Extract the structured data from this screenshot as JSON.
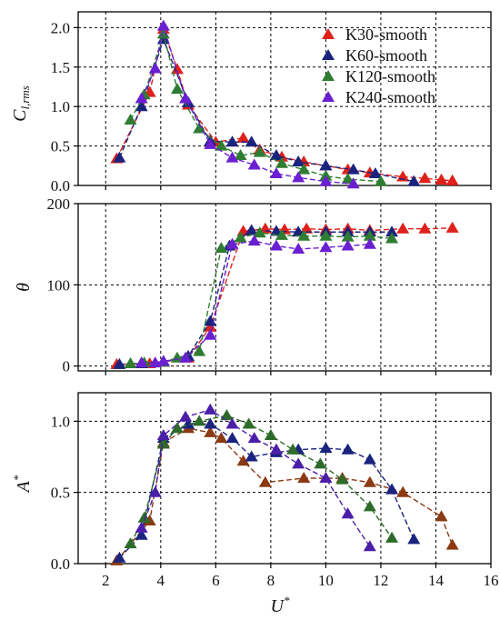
{
  "chart_data": [
    {
      "type": "line",
      "ylabel": "C_l,rms",
      "ylabel_main": "C",
      "ylabel_sub": "l,rms",
      "xlim": [
        1,
        16
      ],
      "ylim": [
        0,
        2.2
      ],
      "xticks": [
        2,
        4,
        6,
        8,
        10,
        12,
        14,
        16
      ],
      "yticks": [
        0.0,
        0.5,
        1.0,
        1.5,
        2.0
      ],
      "ytick_labels": [
        "0.0",
        "0.5",
        "1.0",
        "1.5",
        "2.0"
      ],
      "grid": true,
      "legend_position": "top-right",
      "series": [
        {
          "name": "K30-smooth",
          "color": "#e0201b",
          "x": [
            2.4,
            3.6,
            4.1,
            4.6,
            5.0,
            6.0,
            7.0,
            7.6,
            8.4,
            9.2,
            10.0,
            10.8,
            11.6,
            12.8,
            13.6,
            14.2,
            14.6
          ],
          "y": [
            0.34,
            1.18,
            1.98,
            1.47,
            1.02,
            0.55,
            0.6,
            0.45,
            0.36,
            0.3,
            0.25,
            0.2,
            0.16,
            0.11,
            0.09,
            0.07,
            0.06
          ]
        },
        {
          "name": "K60-smooth",
          "color": "#1a237e",
          "x": [
            2.5,
            3.3,
            4.1,
            5.0,
            5.8,
            6.6,
            7.3,
            8.2,
            9.0,
            10.0,
            11.0,
            11.8,
            13.2
          ],
          "y": [
            0.35,
            1.0,
            1.85,
            1.05,
            0.56,
            0.55,
            0.55,
            0.38,
            0.3,
            0.25,
            0.2,
            0.15,
            0.05
          ]
        },
        {
          "name": "K120-smooth",
          "color": "#2e7d32",
          "x": [
            2.9,
            3.4,
            4.1,
            4.6,
            5.4,
            6.2,
            6.9,
            7.6,
            8.4,
            9.2,
            10.0,
            10.8,
            12.0
          ],
          "y": [
            0.83,
            1.15,
            1.92,
            1.22,
            0.72,
            0.5,
            0.38,
            0.42,
            0.28,
            0.2,
            0.12,
            0.08,
            0.05
          ]
        },
        {
          "name": "K240-smooth",
          "color": "#6a1fd1",
          "x": [
            3.3,
            3.8,
            4.1,
            4.9,
            5.8,
            6.6,
            7.4,
            8.2,
            9.0,
            10.0,
            11.0
          ],
          "y": [
            1.1,
            1.48,
            2.02,
            1.1,
            0.52,
            0.35,
            0.26,
            0.15,
            0.1,
            0.05,
            0.02
          ]
        }
      ]
    },
    {
      "type": "line",
      "ylabel": "θ",
      "xlim": [
        1,
        16
      ],
      "ylim": [
        -6,
        200
      ],
      "xticks": [
        2,
        4,
        6,
        8,
        10,
        12,
        14,
        16
      ],
      "yticks": [
        0,
        100,
        200
      ],
      "ytick_labels": [
        "0",
        "100",
        "200"
      ],
      "grid": true,
      "series": [
        {
          "name": "K30-smooth",
          "color": "#e0201b",
          "x": [
            2.4,
            3.6,
            4.1,
            5.0,
            5.8,
            7.0,
            7.8,
            8.5,
            9.3,
            10.0,
            10.8,
            11.6,
            12.8,
            13.6,
            14.6
          ],
          "y": [
            2,
            3,
            5,
            10,
            48,
            166,
            169,
            168,
            169,
            168,
            169,
            167,
            169,
            169,
            170
          ]
        },
        {
          "name": "K60-smooth",
          "color": "#1a237e",
          "x": [
            2.5,
            3.3,
            4.1,
            5.0,
            5.8,
            6.5,
            7.3,
            8.2,
            9.0,
            10.0,
            10.8,
            11.6,
            12.4
          ],
          "y": [
            2,
            3,
            5,
            12,
            55,
            148,
            167,
            166,
            165,
            165,
            165,
            165,
            165
          ]
        },
        {
          "name": "K120-smooth",
          "color": "#2e7d32",
          "x": [
            2.9,
            3.4,
            4.1,
            4.6,
            5.4,
            6.2,
            6.9,
            7.6,
            8.4,
            9.2,
            10.0,
            10.8,
            11.6,
            12.4
          ],
          "y": [
            3,
            4,
            5,
            10,
            18,
            145,
            158,
            164,
            161,
            160,
            160,
            159,
            160,
            157
          ]
        },
        {
          "name": "K240-smooth",
          "color": "#6a1fd1",
          "x": [
            3.3,
            3.8,
            4.1,
            4.9,
            5.8,
            6.6,
            7.4,
            8.2,
            9.0,
            10.0,
            10.8,
            11.6
          ],
          "y": [
            4,
            4,
            6,
            10,
            38,
            150,
            154,
            148,
            144,
            146,
            148,
            150
          ]
        }
      ]
    },
    {
      "type": "line",
      "ylabel": "A*",
      "ylabel_main": "A",
      "ylabel_sup": "*",
      "xlabel": "U*",
      "xlabel_main": "U",
      "xlabel_sup": "*",
      "xlim": [
        1,
        16
      ],
      "ylim": [
        0,
        1.2
      ],
      "xticks": [
        2,
        4,
        6,
        8,
        10,
        12,
        14,
        16
      ],
      "xtick_labels": [
        "2",
        "4",
        "6",
        "8",
        "10",
        "12",
        "14",
        "16"
      ],
      "yticks": [
        0.0,
        0.5,
        1.0
      ],
      "ytick_labels": [
        "0.0",
        "0.5",
        "1.0"
      ],
      "grid": true,
      "series": [
        {
          "name": "K30-smooth",
          "color": "#8b3a13",
          "x": [
            2.4,
            3.6,
            4.1,
            5.0,
            5.8,
            6.2,
            7.0,
            7.8,
            9.2,
            10.0,
            10.6,
            11.6,
            12.8,
            14.2,
            14.6
          ],
          "y": [
            0.02,
            0.3,
            0.85,
            0.95,
            0.92,
            0.88,
            0.72,
            0.57,
            0.6,
            0.6,
            0.6,
            0.57,
            0.5,
            0.33,
            0.13
          ]
        },
        {
          "name": "K60-smooth",
          "color": "#1a237e",
          "x": [
            2.5,
            3.3,
            4.1,
            5.0,
            5.8,
            6.6,
            7.3,
            8.2,
            9.0,
            10.0,
            10.8,
            11.6,
            12.4,
            13.2
          ],
          "y": [
            0.04,
            0.2,
            0.88,
            0.98,
            0.98,
            0.88,
            0.75,
            0.78,
            0.8,
            0.81,
            0.8,
            0.73,
            0.52,
            0.17
          ]
        },
        {
          "name": "K120-smooth",
          "color": "#2e6b2a",
          "x": [
            2.9,
            3.4,
            4.1,
            4.6,
            5.4,
            6.4,
            7.2,
            8.0,
            8.8,
            9.8,
            10.6,
            11.6,
            12.4
          ],
          "y": [
            0.14,
            0.32,
            0.84,
            0.95,
            1.0,
            1.04,
            0.98,
            0.9,
            0.8,
            0.7,
            0.59,
            0.4,
            0.18
          ]
        },
        {
          "name": "K240-smooth",
          "color": "#4b1fa8",
          "x": [
            3.3,
            3.8,
            4.1,
            4.9,
            5.8,
            6.6,
            7.4,
            8.2,
            9.0,
            10.0,
            10.8,
            11.6
          ],
          "y": [
            0.25,
            0.5,
            0.9,
            1.03,
            1.08,
            0.98,
            0.88,
            0.8,
            0.7,
            0.6,
            0.35,
            0.12
          ]
        }
      ]
    }
  ]
}
